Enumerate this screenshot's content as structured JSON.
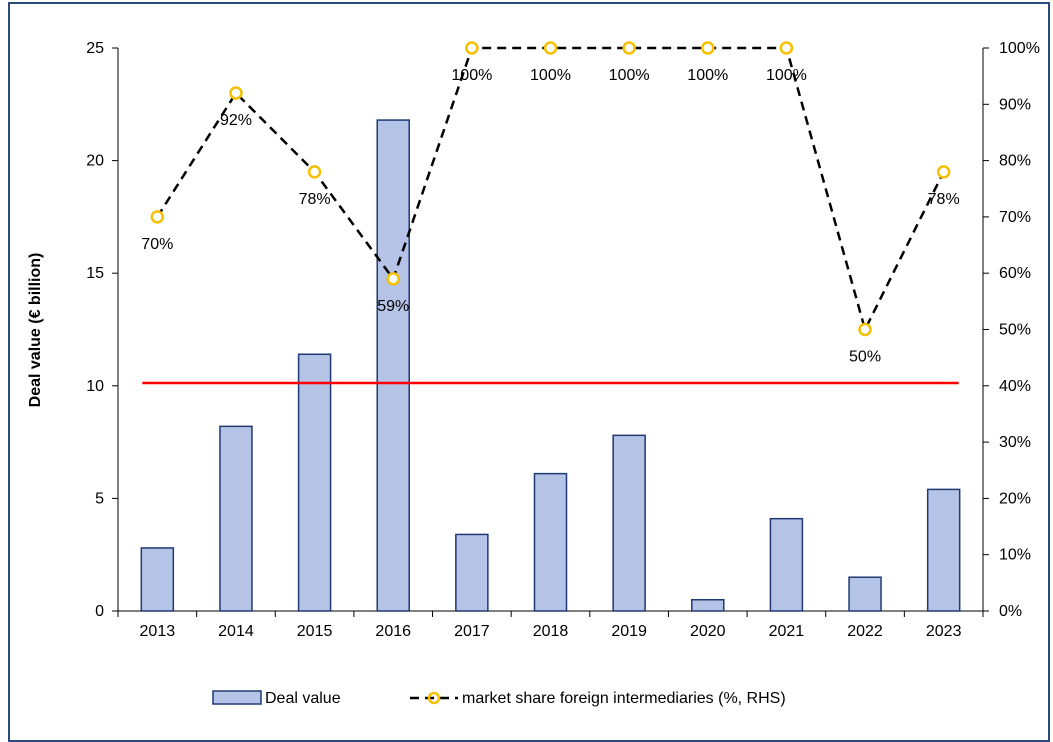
{
  "chart_data": {
    "type": "bar",
    "categories": [
      "2013",
      "2014",
      "2015",
      "2016",
      "2017",
      "2018",
      "2019",
      "2020",
      "2021",
      "2022",
      "2023"
    ],
    "series": [
      {
        "name": "Deal value",
        "type": "bar",
        "axis": "left",
        "values": [
          2.8,
          8.2,
          11.4,
          21.8,
          3.4,
          6.1,
          7.8,
          0.5,
          4.1,
          1.5,
          5.4
        ],
        "color": "#b4c3e6",
        "border_color": "#1f3a73"
      },
      {
        "name": "market share foreign intermediaries (%, RHS)",
        "type": "line",
        "axis": "right",
        "values": [
          70,
          92,
          78,
          59,
          100,
          100,
          100,
          100,
          100,
          50,
          78
        ],
        "labels": [
          "70%",
          "92%",
          "78%",
          "59%",
          "100%",
          "100%",
          "100%",
          "100%",
          "100%",
          "50%",
          "78%"
        ],
        "line_style": "dashed",
        "color": "#000000",
        "marker_color": "#f5c000"
      }
    ],
    "reference_line": {
      "axis": "right",
      "value": 40.5,
      "color": "#ff0000"
    },
    "ylabel": "Deal value (€ billion)",
    "ylim": [
      0,
      25
    ],
    "y_ticks": [
      "0",
      "5",
      "10",
      "15",
      "20",
      "25"
    ],
    "y2lim": [
      0,
      100
    ],
    "y2_ticks": [
      "0%",
      "10%",
      "20%",
      "30%",
      "40%",
      "50%",
      "60%",
      "70%",
      "80%",
      "90%",
      "100%"
    ],
    "grid": false,
    "legend_position": "bottom"
  }
}
